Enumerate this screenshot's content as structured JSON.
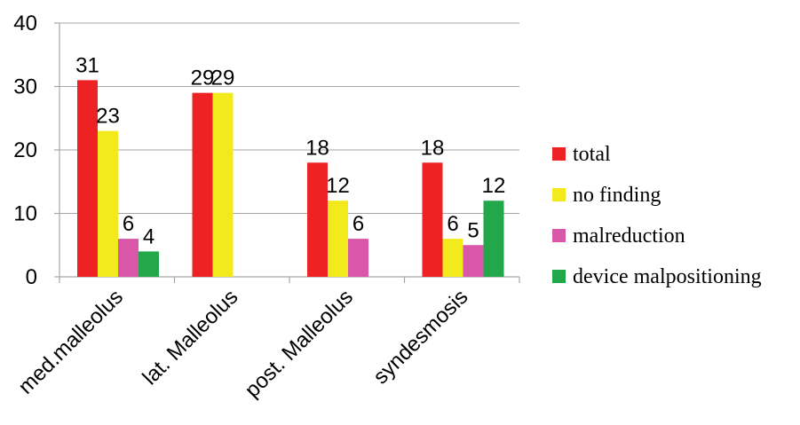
{
  "chart_data": {
    "type": "bar",
    "categories": [
      "med.malleolus",
      "lat. Malleolus",
      "post. Malleolus",
      "syndesmosis"
    ],
    "series": [
      {
        "name": "total",
        "color": "#ee2222",
        "values": [
          31,
          29,
          18,
          18
        ]
      },
      {
        "name": "no finding",
        "color": "#f2ea1c",
        "values": [
          23,
          29,
          12,
          6
        ]
      },
      {
        "name": "malreduction",
        "color": "#d957a8",
        "values": [
          6,
          null,
          6,
          5
        ]
      },
      {
        "name": "device malpositioning",
        "color": "#22a84a",
        "values": [
          4,
          null,
          null,
          12
        ]
      }
    ],
    "y_ticks": [
      "0",
      "10",
      "20",
      "30",
      "40"
    ],
    "ylim": [
      0,
      40
    ],
    "grid": true,
    "legend_position": "right",
    "data_labels": [
      [
        "31",
        "23",
        "6",
        "4"
      ],
      [
        "29",
        "29",
        "",
        ""
      ],
      [
        "18",
        "12",
        "6",
        ""
      ],
      [
        "18",
        "6",
        "5",
        "12"
      ]
    ]
  }
}
